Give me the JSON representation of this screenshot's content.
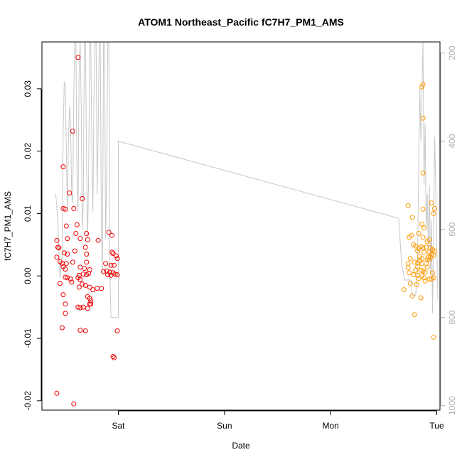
{
  "chart_data": {
    "type": "scatter",
    "title": "ATOM1 Northeast_Pacific fC7H7_PM1_AMS",
    "xlabel": "Date",
    "ylabel": "fC7H7_PM1_AMS",
    "x_ticks": [
      "Sat",
      "Sun",
      "Mon",
      "Tue"
    ],
    "xlim_days": [
      -0.72,
      3.03
    ],
    "ylim": [
      -0.0215,
      0.0375
    ],
    "y_ticks": [
      -0.02,
      -0.01,
      0.0,
      0.01,
      0.02,
      0.03
    ],
    "y_tick_labels": [
      "-0.02",
      "-0.01",
      "0.00",
      "0.01",
      "0.02",
      "0.03"
    ],
    "y2_lim": [
      1010,
      175
    ],
    "y2_ticks": [
      200,
      400,
      600,
      800,
      1000
    ],
    "y2_tick_labels": [
      "200",
      "400",
      "600",
      "800",
      "1000"
    ],
    "colors": {
      "series1": "#ee0000",
      "series2": "#ff9900",
      "line": "#c8c8c8"
    },
    "series": [
      {
        "color": "#ee0000",
        "points": [
          [
            -0.38,
            0.035
          ],
          [
            -0.43,
            0.0232
          ],
          [
            -0.52,
            0.0175
          ],
          [
            -0.46,
            0.0133
          ],
          [
            -0.52,
            0.0108
          ],
          [
            -0.5,
            0.0107
          ],
          [
            -0.42,
            0.0108
          ],
          [
            -0.34,
            0.0124
          ],
          [
            -0.39,
            0.0082
          ],
          [
            -0.49,
            0.008
          ],
          [
            -0.3,
            0.0068
          ],
          [
            -0.4,
            0.0068
          ],
          [
            -0.09,
            0.007
          ],
          [
            -0.06,
            0.0065
          ],
          [
            -0.36,
            0.006
          ],
          [
            -0.29,
            0.0058
          ],
          [
            -0.19,
            0.0057
          ],
          [
            -0.48,
            0.006
          ],
          [
            -0.58,
            0.0057
          ],
          [
            -0.57,
            0.0046
          ],
          [
            -0.56,
            0.0045
          ],
          [
            -0.31,
            0.0046
          ],
          [
            -0.51,
            0.0037
          ],
          [
            -0.48,
            0.0035
          ],
          [
            -0.3,
            0.0035
          ],
          [
            -0.41,
            0.004
          ],
          [
            -0.06,
            0.0038
          ],
          [
            -0.05,
            0.0036
          ],
          [
            -0.02,
            0.0032
          ],
          [
            -0.58,
            0.003
          ],
          [
            -0.01,
            0.0028
          ],
          [
            -0.55,
            0.0023
          ],
          [
            -0.49,
            0.002
          ],
          [
            -0.43,
            0.0022
          ],
          [
            -0.3,
            0.0022
          ],
          [
            -0.12,
            0.002
          ],
          [
            -0.07,
            0.0017
          ],
          [
            -0.04,
            0.0017
          ],
          [
            -0.53,
            0.002
          ],
          [
            -0.52,
            0.0015
          ],
          [
            -0.5,
            0.0011
          ],
          [
            -0.36,
            0.0014
          ],
          [
            -0.32,
            0.0012
          ],
          [
            -0.27,
            0.001
          ],
          [
            -0.14,
            0.0007
          ],
          [
            -0.11,
            0.0008
          ],
          [
            -0.08,
            0.0006
          ],
          [
            -0.05,
            0.0005
          ],
          [
            -0.28,
            0.0004
          ],
          [
            -0.3,
            0.0002
          ],
          [
            -0.33,
            0.0003
          ],
          [
            -0.37,
            0.0001
          ],
          [
            -0.1,
            0.0002
          ],
          [
            -0.07,
            0.0001
          ],
          [
            -0.03,
            0.0003
          ],
          [
            -0.01,
            0.0002
          ],
          [
            -0.5,
            -0.0002
          ],
          [
            -0.48,
            -0.0003
          ],
          [
            -0.38,
            -0.0003
          ],
          [
            -0.45,
            -0.0005
          ],
          [
            -0.36,
            -0.0006
          ],
          [
            -0.44,
            -0.001
          ],
          [
            -0.34,
            -0.0013
          ],
          [
            -0.55,
            -0.0012
          ],
          [
            -0.31,
            -0.0015
          ],
          [
            -0.37,
            -0.0018
          ],
          [
            -0.27,
            -0.0018
          ],
          [
            -0.2,
            -0.002
          ],
          [
            -0.16,
            -0.002
          ],
          [
            -0.24,
            -0.0022
          ],
          [
            -0.52,
            -0.003
          ],
          [
            -0.29,
            -0.0033
          ],
          [
            -0.27,
            -0.0036
          ],
          [
            -0.26,
            -0.004
          ],
          [
            -0.5,
            -0.0045
          ],
          [
            -0.27,
            -0.0045
          ],
          [
            -0.26,
            -0.0045
          ],
          [
            -0.38,
            -0.005
          ],
          [
            -0.33,
            -0.005
          ],
          [
            -0.29,
            -0.0052
          ],
          [
            -0.36,
            -0.0051
          ],
          [
            -0.5,
            -0.006
          ],
          [
            -0.53,
            -0.0083
          ],
          [
            -0.36,
            -0.0087
          ],
          [
            -0.31,
            -0.0088
          ],
          [
            -0.01,
            -0.0088
          ],
          [
            -0.05,
            -0.0129
          ],
          [
            -0.04,
            -0.0131
          ],
          [
            -0.58,
            -0.0188
          ],
          [
            -0.42,
            -0.0205
          ]
        ]
      },
      {
        "color": "#ff9900",
        "points": [
          [
            2.87,
            0.0307
          ],
          [
            2.86,
            0.0303
          ],
          [
            2.87,
            0.0253
          ],
          [
            2.87,
            0.0165
          ],
          [
            2.73,
            0.0113
          ],
          [
            2.95,
            0.0117
          ],
          [
            2.87,
            0.0107
          ],
          [
            2.98,
            0.0108
          ],
          [
            2.97,
            0.01
          ],
          [
            2.77,
            0.0094
          ],
          [
            2.86,
            0.0083
          ],
          [
            2.88,
            0.0077
          ],
          [
            2.83,
            0.0068
          ],
          [
            2.76,
            0.0065
          ],
          [
            2.74,
            0.0062
          ],
          [
            2.87,
            0.0062
          ],
          [
            2.91,
            0.0055
          ],
          [
            2.93,
            0.0058
          ],
          [
            2.78,
            0.005
          ],
          [
            2.8,
            0.0048
          ],
          [
            2.85,
            0.0047
          ],
          [
            2.83,
            0.0044
          ],
          [
            2.87,
            0.0045
          ],
          [
            2.9,
            0.0046
          ],
          [
            2.94,
            0.0045
          ],
          [
            2.96,
            0.0042
          ],
          [
            2.98,
            0.004
          ],
          [
            2.82,
            0.004
          ],
          [
            2.88,
            0.0038
          ],
          [
            2.93,
            0.0038
          ],
          [
            2.95,
            0.0035
          ],
          [
            2.97,
            0.0033
          ],
          [
            2.92,
            0.003
          ],
          [
            2.94,
            0.003
          ],
          [
            2.84,
            0.0031
          ],
          [
            2.86,
            0.0028
          ],
          [
            2.91,
            0.0027
          ],
          [
            2.93,
            0.0026
          ],
          [
            2.75,
            0.0028
          ],
          [
            2.79,
            0.0022
          ],
          [
            2.82,
            0.0021
          ],
          [
            2.84,
            0.0024
          ],
          [
            2.86,
            0.002
          ],
          [
            2.9,
            0.002
          ],
          [
            2.73,
            0.002
          ],
          [
            2.82,
            0.0015
          ],
          [
            2.91,
            0.0014
          ],
          [
            2.73,
            0.0013
          ],
          [
            2.8,
            0.0009
          ],
          [
            2.85,
            0.0009
          ],
          [
            2.87,
            0.0008
          ],
          [
            2.89,
            0.0006
          ],
          [
            2.96,
            0.0005
          ],
          [
            2.74,
            0.0005
          ],
          [
            2.78,
            0.0002
          ],
          [
            2.82,
            0.0001
          ],
          [
            2.86,
            0.0
          ],
          [
            2.88,
            -0.0003
          ],
          [
            2.93,
            -0.0005
          ],
          [
            2.95,
            -0.0005
          ],
          [
            2.97,
            -0.0003
          ],
          [
            2.83,
            -0.0004
          ],
          [
            2.89,
            -0.0008
          ],
          [
            2.75,
            -0.0012
          ],
          [
            2.81,
            -0.0014
          ],
          [
            2.69,
            -0.0022
          ],
          [
            2.77,
            -0.0032
          ],
          [
            2.85,
            -0.0035
          ],
          [
            2.79,
            -0.0062
          ],
          [
            2.97,
            -0.0098
          ]
        ]
      }
    ],
    "line": {
      "color": "#c8c8c8",
      "points": [
        [
          -0.59,
          520
        ],
        [
          -0.57,
          580
        ],
        [
          -0.55,
          710
        ],
        [
          -0.53,
          660
        ],
        [
          -0.52,
          370
        ],
        [
          -0.51,
          265
        ],
        [
          -0.5,
          275
        ],
        [
          -0.49,
          420
        ],
        [
          -0.48,
          560
        ],
        [
          -0.47,
          400
        ],
        [
          -0.46,
          320
        ],
        [
          -0.45,
          360
        ],
        [
          -0.44,
          520
        ],
        [
          -0.43,
          540
        ],
        [
          -0.42,
          290
        ],
        [
          -0.41,
          175
        ],
        [
          -0.4,
          175
        ],
        [
          -0.39,
          480
        ],
        [
          -0.38,
          560
        ],
        [
          -0.37,
          240
        ],
        [
          -0.36,
          175
        ],
        [
          -0.35,
          320
        ],
        [
          -0.34,
          600
        ],
        [
          -0.33,
          540
        ],
        [
          -0.32,
          175
        ],
        [
          -0.31,
          175
        ],
        [
          -0.3,
          430
        ],
        [
          -0.29,
          620
        ],
        [
          -0.28,
          480
        ],
        [
          -0.27,
          175
        ],
        [
          -0.26,
          175
        ],
        [
          -0.25,
          410
        ],
        [
          -0.24,
          560
        ],
        [
          -0.23,
          300
        ],
        [
          -0.22,
          175
        ],
        [
          -0.21,
          175
        ],
        [
          -0.2,
          520
        ],
        [
          -0.19,
          380
        ],
        [
          -0.18,
          175
        ],
        [
          -0.17,
          175
        ],
        [
          -0.16,
          600
        ],
        [
          -0.15,
          700
        ],
        [
          -0.14,
          175
        ],
        [
          -0.13,
          175
        ],
        [
          -0.12,
          620
        ],
        [
          -0.11,
          480
        ],
        [
          -0.1,
          175
        ],
        [
          -0.09,
          175
        ],
        [
          -0.08,
          690
        ],
        [
          -0.07,
          800
        ],
        [
          -0.06,
          800
        ],
        [
          -0.05,
          800
        ],
        [
          -0.04,
          800
        ],
        [
          -0.03,
          800
        ],
        [
          -0.02,
          800
        ],
        [
          -0.01,
          800
        ],
        [
          0.0,
          800
        ],
        [
          0.0,
          400
        ],
        [
          2.64,
          575
        ],
        [
          2.67,
          680
        ],
        [
          2.7,
          715
        ],
        [
          2.76,
          715
        ],
        [
          2.77,
          750
        ],
        [
          2.8,
          750
        ],
        [
          2.81,
          720
        ],
        [
          2.82,
          660
        ],
        [
          2.83,
          450
        ],
        [
          2.84,
          280
        ],
        [
          2.85,
          400
        ],
        [
          2.86,
          300
        ],
        [
          2.87,
          175
        ],
        [
          2.88,
          500
        ],
        [
          2.89,
          360
        ],
        [
          2.9,
          600
        ],
        [
          2.91,
          520
        ],
        [
          2.92,
          640
        ],
        [
          2.93,
          500
        ],
        [
          2.94,
          700
        ],
        [
          2.95,
          580
        ],
        [
          2.96,
          790
        ],
        [
          2.97,
          620
        ],
        [
          2.98,
          390
        ],
        [
          2.99,
          500
        ],
        [
          3.0,
          640
        ],
        [
          3.01,
          760
        ]
      ]
    }
  }
}
